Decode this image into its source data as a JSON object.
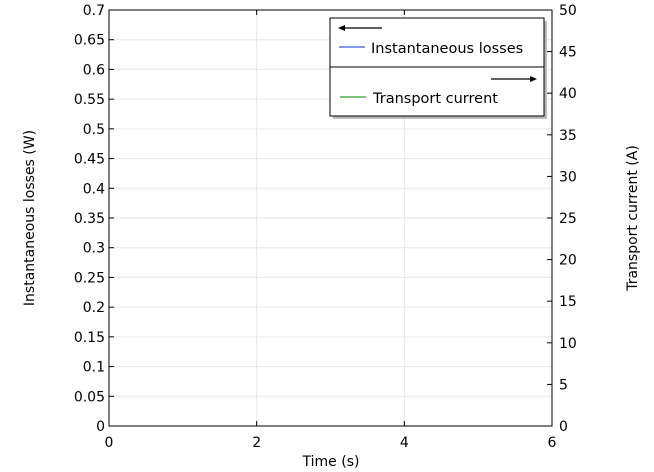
{
  "chart_data": {
    "type": "line",
    "xlabel": "Time (s)",
    "ylabel_left": "Instantaneous losses (W)",
    "ylabel_right": "Transport current (A)",
    "xlim": [
      0,
      6
    ],
    "ylim_left": [
      0,
      0.7
    ],
    "ylim_right": [
      0,
      50
    ],
    "x_ticks": [
      "0",
      "2",
      "4",
      "6"
    ],
    "y_left_ticks": [
      "0",
      "0.05",
      "0.1",
      "0.15",
      "0.2",
      "0.25",
      "0.3",
      "0.35",
      "0.4",
      "0.45",
      "0.5",
      "0.55",
      "0.6",
      "0.65",
      "0.7"
    ],
    "y_right_ticks": [
      "0",
      "5",
      "10",
      "15",
      "20",
      "25",
      "30",
      "35",
      "40",
      "45",
      "50"
    ],
    "grid": true,
    "legend_position": "top-right",
    "series": [
      {
        "name": "Instantaneous losses",
        "axis": "left",
        "arrow": "left",
        "color": "#3b5bdb",
        "x": [],
        "y": []
      },
      {
        "name": "Transport current",
        "axis": "right",
        "arrow": "right",
        "color": "#2e9e2e",
        "x": [],
        "y": []
      }
    ]
  }
}
